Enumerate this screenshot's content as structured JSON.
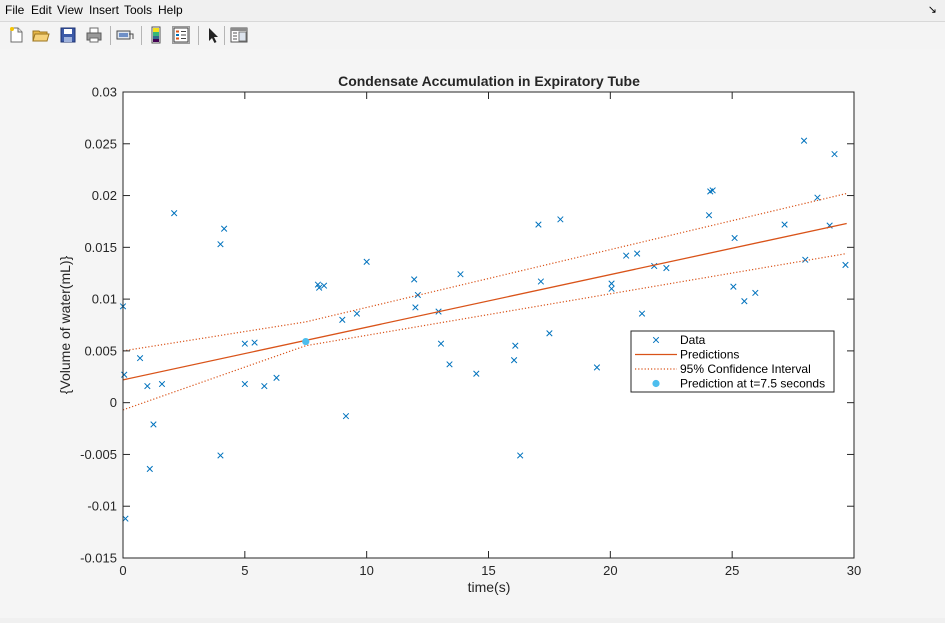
{
  "menu": {
    "items": [
      "File",
      "Edit",
      "View",
      "Insert",
      "Tools",
      "Help"
    ],
    "dock_glyph": "↘"
  },
  "toolbar": {
    "buttons": [
      "new-figure-icon",
      "open-file-icon",
      "save-icon",
      "print-icon",
      "link-plot-icon",
      "insert-colorbar-icon",
      "insert-legend-icon",
      "edit-plot-arrow-icon",
      "property-inspector-icon"
    ]
  },
  "colors": {
    "data": "#0072BD",
    "fit": "#D95319",
    "highlight": "#4DBEEE"
  },
  "chart_data": {
    "type": "scatter",
    "title": "Condensate Accumulation in Expiratory Tube",
    "xlabel": "time(s)",
    "ylabel": "{Volume of water(mL)}",
    "xlim": [
      0,
      30
    ],
    "ylim": [
      -0.015,
      0.03
    ],
    "xticks": [
      0,
      5,
      10,
      15,
      20,
      25,
      30
    ],
    "yticks": [
      -0.015,
      -0.01,
      -0.005,
      0,
      0.005,
      0.01,
      0.015,
      0.02,
      0.025,
      0.03
    ],
    "xtick_labels": [
      "0",
      "5",
      "10",
      "15",
      "20",
      "25",
      "30"
    ],
    "ytick_labels": [
      "-0.015",
      "-0.01",
      "-0.005",
      "0",
      "0.005",
      "0.01",
      "0.015",
      "0.02",
      "0.025",
      "0.03"
    ],
    "grid": false,
    "legend": {
      "location": "right",
      "entries": [
        "Data",
        "Predictions",
        "95% Confidence Interval",
        "Prediction at t=7.5 seconds"
      ]
    },
    "series": [
      {
        "name": "Data",
        "kind": "scatter",
        "marker": "x",
        "x": [
          0.0,
          0.05,
          0.1,
          0.7,
          1.0,
          1.1,
          1.25,
          1.6,
          2.1,
          4.0,
          4.0,
          4.15,
          5.0,
          5.0,
          5.4,
          5.8,
          6.3,
          8.0,
          8.05,
          8.25,
          9.0,
          9.15,
          9.6,
          10.0,
          11.95,
          12.0,
          12.1,
          12.95,
          13.05,
          13.4,
          13.85,
          14.5,
          16.05,
          16.1,
          16.3,
          17.05,
          17.15,
          17.5,
          17.95,
          19.45,
          20.05,
          20.05,
          20.65,
          21.1,
          21.3,
          21.8,
          22.3,
          24.1,
          24.2,
          24.05,
          25.1,
          25.05,
          25.5,
          25.95,
          27.15,
          27.95,
          28.0,
          28.5,
          29.0,
          29.2,
          29.65
        ],
        "y": [
          0.0093,
          0.0027,
          -0.0112,
          0.0043,
          0.0016,
          -0.0064,
          -0.0021,
          0.0018,
          0.0183,
          0.0153,
          -0.0051,
          0.0168,
          0.0057,
          0.0018,
          0.0058,
          0.0016,
          0.0024,
          0.0114,
          0.0111,
          0.0113,
          0.008,
          -0.0013,
          0.0086,
          0.0136,
          0.0119,
          0.0092,
          0.0104,
          0.0088,
          0.0057,
          0.0037,
          0.0124,
          0.0028,
          0.0041,
          0.0055,
          -0.0051,
          0.0172,
          0.0117,
          0.0067,
          0.0177,
          0.0034,
          0.0115,
          0.011,
          0.0142,
          0.0144,
          0.0086,
          0.0132,
          0.013,
          0.0204,
          0.0205,
          0.0181,
          0.0159,
          0.0112,
          0.0098,
          0.0106,
          0.0172,
          0.0253,
          0.0138,
          0.0198,
          0.0171,
          0.024,
          0.0133
        ]
      },
      {
        "name": "Predictions",
        "kind": "line",
        "x": [
          0,
          29.7
        ],
        "y": [
          0.0022,
          0.0173
        ]
      },
      {
        "name": "95% Confidence Interval",
        "kind": "dotted",
        "lines": [
          {
            "x": [
              0,
              7.5,
              29.7
            ],
            "y": [
              0.005,
              0.0078,
              0.0202
            ]
          },
          {
            "x": [
              0,
              7.5,
              29.7
            ],
            "y": [
              -0.0007,
              0.0055,
              0.0144
            ]
          }
        ]
      },
      {
        "name": "Prediction at t=7.5 seconds",
        "kind": "point",
        "x": [
          7.5
        ],
        "y": [
          0.0059
        ]
      }
    ]
  }
}
